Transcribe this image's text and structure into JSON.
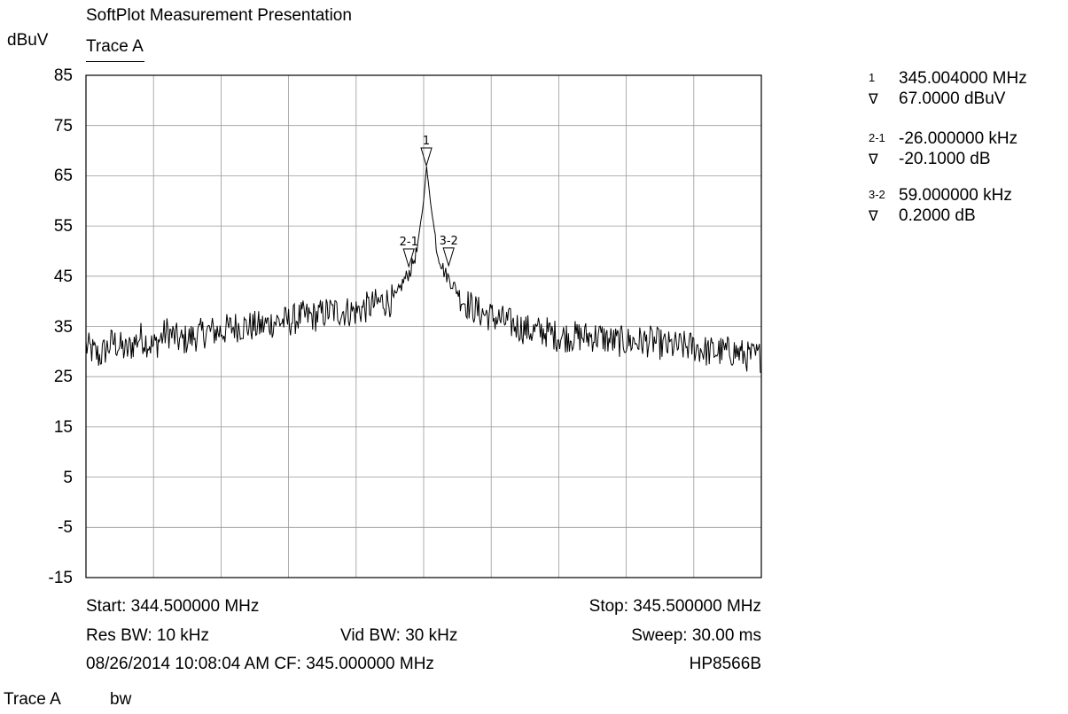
{
  "title": "SoftPlot Measurement Presentation",
  "trace_header": "Trace A",
  "y_unit": "dBuV",
  "footer_left": [
    "Trace A",
    "bw"
  ],
  "chart_data": {
    "type": "line",
    "title": "SoftPlot Measurement Presentation",
    "ylabel": "dBuV",
    "xlim": [
      344.5,
      345.5
    ],
    "ylim": [
      -15,
      85
    ],
    "x_divisions": 10,
    "yticks": [
      85,
      75,
      65,
      55,
      45,
      35,
      25,
      15,
      5,
      -5,
      -15
    ],
    "grid": true,
    "series": [
      {
        "name": "Trace A",
        "x": [
          344.5,
          344.52,
          344.54,
          344.56,
          344.58,
          344.6,
          344.62,
          344.64,
          344.66,
          344.68,
          344.7,
          344.72,
          344.74,
          344.76,
          344.78,
          344.8,
          344.82,
          344.84,
          344.86,
          344.88,
          344.9,
          344.92,
          344.94,
          344.95,
          344.96,
          344.97,
          344.98,
          344.99,
          345.0,
          345.004,
          345.01,
          345.02,
          345.03,
          345.04,
          345.05,
          345.06,
          345.08,
          345.1,
          345.12,
          345.14,
          345.16,
          345.18,
          345.2,
          345.22,
          345.24,
          345.26,
          345.28,
          345.3,
          345.32,
          345.34,
          345.36,
          345.38,
          345.4,
          345.42,
          345.44,
          345.46,
          345.48,
          345.5
        ],
        "y": [
          31,
          29,
          32,
          30,
          33,
          31,
          34,
          32,
          33,
          34,
          34,
          35,
          35,
          35,
          36,
          36,
          37,
          37,
          38,
          38,
          38,
          39,
          40,
          40,
          41,
          44,
          46,
          50,
          60,
          67,
          60,
          50,
          46,
          44,
          42,
          40,
          38,
          37,
          36,
          35,
          34,
          34,
          33,
          33,
          33,
          33,
          32,
          32,
          32,
          32,
          31,
          31,
          31,
          30,
          30,
          30,
          29,
          29
        ]
      }
    ],
    "markers": [
      {
        "label": "1",
        "x": 345.004,
        "y": 67.0
      },
      {
        "label": "2-1",
        "x": 344.978,
        "y": 46.9
      },
      {
        "label": "3-2",
        "x": 345.037,
        "y": 47.1
      }
    ]
  },
  "marker_readout": [
    {
      "id": "1",
      "freq": "345.004000 MHz",
      "level": "67.0000 dBuV",
      "symbol": "∇"
    },
    {
      "id": "2-1",
      "freq": "-26.000000 kHz",
      "level": "-20.1000 dB",
      "symbol": "∇"
    },
    {
      "id": "3-2",
      "freq": "59.000000 kHz",
      "level": "0.2000 dB",
      "symbol": "∇"
    }
  ],
  "settings": {
    "start": "Start: 344.500000 MHz",
    "stop": "Stop: 345.500000 MHz",
    "res_bw": "Res BW: 10 kHz",
    "vid_bw": "Vid BW: 30 kHz",
    "sweep": "Sweep: 30.00 ms",
    "timestamp_cf": "08/26/2014 10:08:04 AM CF: 345.000000 MHz",
    "instrument": "HP8566B"
  }
}
